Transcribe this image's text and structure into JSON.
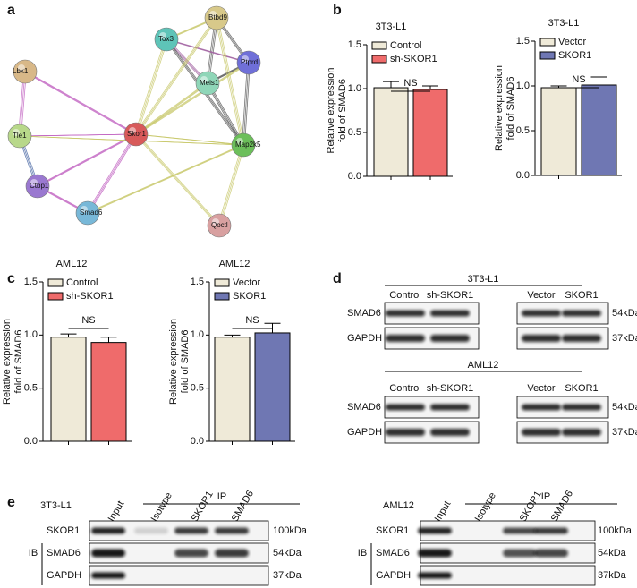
{
  "panel_labels": [
    "a",
    "b",
    "c",
    "d",
    "e"
  ],
  "network": {
    "nodes": [
      "Btbd9",
      "Tox3",
      "Ptprd",
      "Meis1",
      "Lbx1",
      "Tle1",
      "Skor1",
      "Map2k5",
      "Ctbp1",
      "Smad6",
      "Qoctl"
    ]
  },
  "chart_data": [
    {
      "type": "bar",
      "title": "3T3-L1",
      "ylabel": [
        "Relative expression",
        "fold of SMAD6"
      ],
      "annotation": "NS",
      "ylim": [
        0,
        1.5
      ],
      "yticks": [
        {
          "value": 0,
          "label": "0.0"
        },
        {
          "value": 0.5,
          "label": "0.5"
        },
        {
          "value": 1,
          "label": "1.0"
        },
        {
          "value": 1.5,
          "label": "1.5"
        }
      ],
      "series": [
        {
          "name": "Control",
          "color": "#efead8",
          "values": [
            1.01
          ],
          "errors": [
            0.07
          ]
        },
        {
          "name": "sh-SKOR1",
          "color": "#ef6b6b",
          "values": [
            0.99
          ],
          "errors": [
            0.04
          ]
        }
      ]
    },
    {
      "type": "bar",
      "title": "3T3-L1",
      "ylabel": [
        "Relative expression",
        "fold of SMAD6"
      ],
      "annotation": "NS",
      "ylim": [
        0,
        1.5
      ],
      "yticks": [
        {
          "value": 0,
          "label": "0.0"
        },
        {
          "value": 0.5,
          "label": "0.5"
        },
        {
          "value": 1,
          "label": "1.0"
        },
        {
          "value": 1.5,
          "label": "1.5"
        }
      ],
      "series": [
        {
          "name": "Vector",
          "color": "#efead8",
          "values": [
            0.98
          ],
          "errors": [
            0.02
          ]
        },
        {
          "name": "SKOR1",
          "color": "#6f77b3",
          "values": [
            1.01
          ],
          "errors": [
            0.09
          ]
        }
      ]
    },
    {
      "type": "bar",
      "title": "AML12",
      "ylabel": [
        "Relative expression",
        "fold of SMAD6"
      ],
      "annotation": "NS",
      "ylim": [
        0,
        1.5
      ],
      "yticks": [
        {
          "value": 0,
          "label": "0.0"
        },
        {
          "value": 0.5,
          "label": "0.5"
        },
        {
          "value": 1,
          "label": "1.0"
        },
        {
          "value": 1.5,
          "label": "1.5"
        }
      ],
      "series": [
        {
          "name": "Control",
          "color": "#efead8",
          "values": [
            0.98
          ],
          "errors": [
            0.03
          ]
        },
        {
          "name": "sh-SKOR1",
          "color": "#ef6b6b",
          "values": [
            0.93
          ],
          "errors": [
            0.05
          ]
        }
      ]
    },
    {
      "type": "bar",
      "title": "AML12",
      "ylabel": [
        "Relative expression",
        "fold of SMAD6"
      ],
      "annotation": "NS",
      "ylim": [
        0,
        1.5
      ],
      "yticks": [
        {
          "value": 0,
          "label": "0.0"
        },
        {
          "value": 0.5,
          "label": "0.5"
        },
        {
          "value": 1,
          "label": "1.0"
        },
        {
          "value": 1.5,
          "label": "1.5"
        }
      ],
      "series": [
        {
          "name": "Vector",
          "color": "#efead8",
          "values": [
            0.98
          ],
          "errors": [
            0.02
          ]
        },
        {
          "name": "SKOR1",
          "color": "#6f77b3",
          "values": [
            1.02
          ],
          "errors": [
            0.09
          ]
        }
      ]
    }
  ],
  "blot_d": [
    {
      "title": "3T3-L1",
      "lanes": [
        "Control",
        "sh-SKOR1",
        "Vector",
        "SKOR1"
      ],
      "rows": [
        "SMAD6",
        "GAPDH"
      ],
      "sizes": [
        "54kDa",
        "37kDa"
      ]
    },
    {
      "title": "AML12",
      "lanes": [
        "Control",
        "sh-SKOR1",
        "Vector",
        "SKOR1"
      ],
      "rows": [
        "SMAD6",
        "GAPDH"
      ],
      "sizes": [
        "54kDa",
        "37kDa"
      ]
    }
  ],
  "blot_e": [
    {
      "cell": "3T3-L1",
      "ip": "IP",
      "ib": "IB",
      "lanes": [
        "Input",
        "Isotype",
        "SKOR1",
        "SMAD6"
      ],
      "rows": [
        "SKOR1",
        "SMAD6",
        "GAPDH"
      ],
      "sizes": [
        "100kDa",
        "54kDa",
        "37kDa"
      ]
    },
    {
      "cell": "AML12",
      "ip": "IP",
      "ib": "IB",
      "lanes": [
        "Input",
        "Isotype",
        "SKOR1",
        "SMAD6"
      ],
      "rows": [
        "SKOR1",
        "SMAD6",
        "GAPDH"
      ],
      "sizes": [
        "100kDa",
        "54kDa",
        "37kDa"
      ]
    }
  ]
}
